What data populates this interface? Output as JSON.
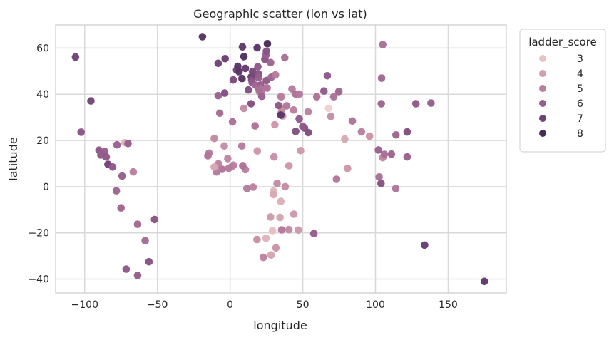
{
  "chart_data": {
    "type": "scatter",
    "title": "Geographic scatter (lon vs lat)",
    "xlabel": "longitude",
    "ylabel": "latitude",
    "xlim": [
      -120,
      190
    ],
    "ylim": [
      -46,
      70
    ],
    "xticks": [
      -100,
      -50,
      0,
      50,
      100,
      150
    ],
    "yticks": [
      -40,
      -20,
      0,
      20,
      40,
      60
    ],
    "grid": true,
    "legend": {
      "title": "ladder_score",
      "placement": "outside-right-top",
      "entries": [
        {
          "label": "3",
          "color": "#e8c4c4"
        },
        {
          "label": "4",
          "color": "#d3a1ad"
        },
        {
          "label": "5",
          "color": "#ba7f9f"
        },
        {
          "label": "6",
          "color": "#965e8c"
        },
        {
          "label": "7",
          "color": "#6f4276"
        },
        {
          "label": "8",
          "color": "#482c56"
        }
      ]
    },
    "hue_palette": [
      [
        2.7,
        "#f0d2cc"
      ],
      [
        4,
        "#d3a1ad"
      ],
      [
        5,
        "#ba7f9f"
      ],
      [
        6,
        "#965e8c"
      ],
      [
        7,
        "#6f4276"
      ],
      [
        8,
        "#3d2550"
      ]
    ],
    "points": [
      {
        "x": 174.9,
        "y": -41.0,
        "c": 7.3
      },
      {
        "x": 133.8,
        "y": -25.3,
        "c": 7.2
      },
      {
        "x": 105.0,
        "y": 61.5,
        "c": 5.5
      },
      {
        "x": 104.2,
        "y": 47.0,
        "c": 5.7
      },
      {
        "x": 104.0,
        "y": 35.9,
        "c": 5.8
      },
      {
        "x": 127.8,
        "y": 35.9,
        "c": 5.9
      },
      {
        "x": 127.8,
        "y": 35.9,
        "c": 6.0
      },
      {
        "x": 138.2,
        "y": 36.2,
        "c": 6.0
      },
      {
        "x": 121.8,
        "y": 23.7,
        "c": 6.5
      },
      {
        "x": 114.1,
        "y": 22.4,
        "c": 5.8
      },
      {
        "x": 111.0,
        "y": 14.1,
        "c": 5.8
      },
      {
        "x": 102.0,
        "y": 15.9,
        "c": 5.9
      },
      {
        "x": 105.0,
        "y": 12.6,
        "c": 4.8
      },
      {
        "x": 106.1,
        "y": 14.0,
        "c": 5.5
      },
      {
        "x": 121.8,
        "y": 12.9,
        "c": 5.9
      },
      {
        "x": 102.5,
        "y": 4.2,
        "c": 5.5
      },
      {
        "x": 103.8,
        "y": 1.4,
        "c": 6.4
      },
      {
        "x": 113.9,
        "y": -0.8,
        "c": 5.3
      },
      {
        "x": 90.4,
        "y": 23.7,
        "c": 5.0
      },
      {
        "x": 95.9,
        "y": 21.9,
        "c": 4.4
      },
      {
        "x": 84.1,
        "y": 28.4,
        "c": 5.3
      },
      {
        "x": 78.9,
        "y": 20.6,
        "c": 3.8
      },
      {
        "x": 80.8,
        "y": 7.9,
        "c": 4.3
      },
      {
        "x": 73.2,
        "y": 3.2,
        "c": 5.2
      },
      {
        "x": 67.7,
        "y": 33.9,
        "c": 2.5
      },
      {
        "x": 69.3,
        "y": 30.4,
        "c": 4.6
      },
      {
        "x": 71.3,
        "y": 38.9,
        "c": 5.4
      },
      {
        "x": 74.8,
        "y": 41.2,
        "c": 5.8
      },
      {
        "x": 66.9,
        "y": 48.0,
        "c": 6.2
      },
      {
        "x": 64.6,
        "y": 41.4,
        "c": 6.1
      },
      {
        "x": 59.6,
        "y": 38.9,
        "c": 5.4
      },
      {
        "x": 53.7,
        "y": 32.4,
        "c": 4.9
      },
      {
        "x": 51.2,
        "y": 25.4,
        "c": 6.4
      },
      {
        "x": 53.8,
        "y": 23.4,
        "c": 6.6
      },
      {
        "x": 50.0,
        "y": 26.1,
        "c": 6.2
      },
      {
        "x": 47.5,
        "y": 29.3,
        "c": 6.1
      },
      {
        "x": 45.1,
        "y": 23.9,
        "c": 6.5
      },
      {
        "x": 43.7,
        "y": 33.2,
        "c": 5.0
      },
      {
        "x": 42.6,
        "y": 42.3,
        "c": 5.1
      },
      {
        "x": 45.0,
        "y": 40.1,
        "c": 5.4
      },
      {
        "x": 47.6,
        "y": 40.1,
        "c": 5.2
      },
      {
        "x": 48.5,
        "y": 15.6,
        "c": 4.2
      },
      {
        "x": 40.5,
        "y": 9.1,
        "c": 4.3
      },
      {
        "x": 37.9,
        "y": -0.0,
        "c": 4.6
      },
      {
        "x": 34.9,
        "y": -6.4,
        "c": 3.6
      },
      {
        "x": 29.9,
        "y": -1.9,
        "c": 3.4
      },
      {
        "x": 29.9,
        "y": -3.4,
        "c": 3.8
      },
      {
        "x": 32.3,
        "y": 1.4,
        "c": 4.6
      },
      {
        "x": 30.2,
        "y": 12.9,
        "c": 4.5
      },
      {
        "x": 30.8,
        "y": 26.8,
        "c": 4.3
      },
      {
        "x": 35.2,
        "y": 31.9,
        "c": 4.9
      },
      {
        "x": 36.2,
        "y": 30.6,
        "c": 4.1
      },
      {
        "x": 35.9,
        "y": 33.9,
        "c": 4.6
      },
      {
        "x": 34.9,
        "y": 31.0,
        "c": 7.4
      },
      {
        "x": 38.9,
        "y": 35.0,
        "c": 5.2
      },
      {
        "x": 35.2,
        "y": 38.9,
        "c": 5.0
      },
      {
        "x": 33.4,
        "y": 35.1,
        "c": 6.2
      },
      {
        "x": 46.9,
        "y": -18.8,
        "c": 4.3
      },
      {
        "x": 43.9,
        "y": -11.9,
        "c": 4.3
      },
      {
        "x": 40.5,
        "y": -18.6,
        "c": 4.7
      },
      {
        "x": 35.5,
        "y": -18.7,
        "c": 5.2
      },
      {
        "x": 34.3,
        "y": -13.3,
        "c": 3.9
      },
      {
        "x": 27.8,
        "y": -13.1,
        "c": 4.2
      },
      {
        "x": 29.2,
        "y": -19.0,
        "c": 3.2
      },
      {
        "x": 24.7,
        "y": -22.3,
        "c": 3.5
      },
      {
        "x": 28.2,
        "y": -29.6,
        "c": 3.9
      },
      {
        "x": 22.9,
        "y": -30.6,
        "c": 4.9
      },
      {
        "x": 31.5,
        "y": -26.5,
        "c": 4.4
      },
      {
        "x": 18.5,
        "y": -22.9,
        "c": 4.5
      },
      {
        "x": 57.6,
        "y": -20.3,
        "c": 6.0
      },
      {
        "x": 18.7,
        "y": 15.5,
        "c": 4.3
      },
      {
        "x": 17.2,
        "y": 26.3,
        "c": 5.4
      },
      {
        "x": 10.5,
        "y": 7.4,
        "c": 5.0
      },
      {
        "x": 15.8,
        "y": -0.2,
        "c": 4.9
      },
      {
        "x": 11.6,
        "y": -0.8,
        "c": 5.1
      },
      {
        "x": 8.7,
        "y": 9.1,
        "c": 5.4
      },
      {
        "x": 8.1,
        "y": 17.6,
        "c": 5.1
      },
      {
        "x": 2.3,
        "y": 9.3,
        "c": 5.0
      },
      {
        "x": 1.0,
        "y": 8.6,
        "c": 5.0
      },
      {
        "x": -1.0,
        "y": 7.9,
        "c": 5.1
      },
      {
        "x": -1.6,
        "y": 12.2,
        "c": 4.8
      },
      {
        "x": -4.0,
        "y": 17.6,
        "c": 4.6
      },
      {
        "x": -5.5,
        "y": 7.5,
        "c": 5.3
      },
      {
        "x": -8.0,
        "y": 9.9,
        "c": 4.9
      },
      {
        "x": -9.4,
        "y": 6.4,
        "c": 5.1
      },
      {
        "x": -10.9,
        "y": 8.5,
        "c": 3.8
      },
      {
        "x": -14.5,
        "y": 14.5,
        "c": 5.1
      },
      {
        "x": -15.3,
        "y": 13.4,
        "c": 5.3
      },
      {
        "x": -10.9,
        "y": 20.9,
        "c": 4.7
      },
      {
        "x": -7.1,
        "y": 31.8,
        "c": 5.6
      },
      {
        "x": 1.7,
        "y": 28.0,
        "c": 5.4
      },
      {
        "x": 9.5,
        "y": 33.9,
        "c": 4.6
      },
      {
        "x": -3.7,
        "y": 40.5,
        "c": 6.5
      },
      {
        "x": -8.2,
        "y": 39.4,
        "c": 5.9
      },
      {
        "x": 12.6,
        "y": 41.9,
        "c": 6.5
      },
      {
        "x": 14.4,
        "y": 35.9,
        "c": 6.5
      },
      {
        "x": 2.2,
        "y": 46.2,
        "c": 6.7
      },
      {
        "x": 8.2,
        "y": 46.8,
        "c": 7.5
      },
      {
        "x": 4.5,
        "y": 50.5,
        "c": 6.8
      },
      {
        "x": 6.1,
        "y": 49.8,
        "c": 7.4
      },
      {
        "x": 5.3,
        "y": 52.1,
        "c": 7.4
      },
      {
        "x": 10.5,
        "y": 51.2,
        "c": 7.2
      },
      {
        "x": 14.6,
        "y": 47.5,
        "c": 7.2
      },
      {
        "x": -8.2,
        "y": 53.4,
        "c": 7.0
      },
      {
        "x": -3.4,
        "y": 55.4,
        "c": 7.1
      },
      {
        "x": 9.5,
        "y": 56.3,
        "c": 7.6
      },
      {
        "x": 8.5,
        "y": 60.5,
        "c": 7.3
      },
      {
        "x": 18.6,
        "y": 60.1,
        "c": 7.4
      },
      {
        "x": 25.7,
        "y": 61.9,
        "c": 7.8
      },
      {
        "x": -19.0,
        "y": 64.9,
        "c": 7.5
      },
      {
        "x": 15.5,
        "y": 49.8,
        "c": 6.8
      },
      {
        "x": 19.1,
        "y": 51.9,
        "c": 6.2
      },
      {
        "x": 19.7,
        "y": 48.7,
        "c": 6.4
      },
      {
        "x": 19.5,
        "y": 47.2,
        "c": 6.0
      },
      {
        "x": 14.9,
        "y": 46.2,
        "c": 6.5
      },
      {
        "x": 15.2,
        "y": 45.1,
        "c": 6.1
      },
      {
        "x": 17.7,
        "y": 43.9,
        "c": 5.8
      },
      {
        "x": 19.4,
        "y": 42.7,
        "c": 5.5
      },
      {
        "x": 21.0,
        "y": 44.0,
        "c": 6.1
      },
      {
        "x": 20.9,
        "y": 42.6,
        "c": 5.5
      },
      {
        "x": 21.7,
        "y": 41.6,
        "c": 5.2
      },
      {
        "x": 20.2,
        "y": 41.2,
        "c": 5.5
      },
      {
        "x": 21.8,
        "y": 39.1,
        "c": 5.9
      },
      {
        "x": 25.5,
        "y": 42.7,
        "c": 5.4
      },
      {
        "x": 24.9,
        "y": 45.9,
        "c": 6.1
      },
      {
        "x": 28.4,
        "y": 47.4,
        "c": 5.8
      },
      {
        "x": 31.2,
        "y": 48.4,
        "c": 5.1
      },
      {
        "x": 27.9,
        "y": 53.7,
        "c": 5.8
      },
      {
        "x": 23.9,
        "y": 55.2,
        "c": 6.3
      },
      {
        "x": 24.6,
        "y": 56.9,
        "c": 6.0
      },
      {
        "x": 25.0,
        "y": 58.6,
        "c": 6.4
      },
      {
        "x": 34.9,
        "y": 39.0,
        "c": 5.0
      },
      {
        "x": 37.6,
        "y": 55.8,
        "c": 5.5
      },
      {
        "x": -102.5,
        "y": 23.6,
        "c": 6.3
      },
      {
        "x": -106.3,
        "y": 56.1,
        "c": 7.0
      },
      {
        "x": -95.7,
        "y": 37.1,
        "c": 6.9
      },
      {
        "x": -90.2,
        "y": 15.8,
        "c": 6.2
      },
      {
        "x": -88.5,
        "y": 13.8,
        "c": 6.1
      },
      {
        "x": -88.9,
        "y": 13.7,
        "c": 6.0
      },
      {
        "x": -86.2,
        "y": 15.2,
        "c": 6.0
      },
      {
        "x": -85.2,
        "y": 12.9,
        "c": 6.2
      },
      {
        "x": -84.0,
        "y": 9.7,
        "c": 7.0
      },
      {
        "x": -80.8,
        "y": 8.5,
        "c": 6.2
      },
      {
        "x": -77.8,
        "y": 18.1,
        "c": 5.9
      },
      {
        "x": -72.3,
        "y": 19.0,
        "c": 3.6
      },
      {
        "x": -70.2,
        "y": 18.7,
        "c": 6.0
      },
      {
        "x": -74.3,
        "y": 4.6,
        "c": 6.0
      },
      {
        "x": -66.6,
        "y": 6.4,
        "c": 5.0
      },
      {
        "x": -78.2,
        "y": -1.8,
        "c": 5.8
      },
      {
        "x": -75.0,
        "y": -9.2,
        "c": 5.8
      },
      {
        "x": -63.6,
        "y": -16.3,
        "c": 5.7
      },
      {
        "x": -58.4,
        "y": -23.4,
        "c": 5.6
      },
      {
        "x": -51.9,
        "y": -14.2,
        "c": 6.3
      },
      {
        "x": -55.8,
        "y": -32.5,
        "c": 6.4
      },
      {
        "x": -71.5,
        "y": -35.7,
        "c": 6.2
      },
      {
        "x": -63.6,
        "y": -38.4,
        "c": 6.0
      }
    ]
  }
}
